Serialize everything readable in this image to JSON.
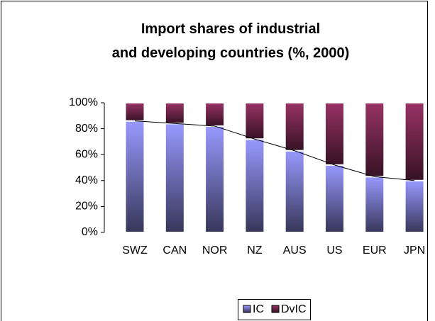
{
  "chart_data": {
    "type": "stacked_bar",
    "title": "Import shares of industrial and developing countries (%, 2000)",
    "categories": [
      "SWZ",
      "CAN",
      "NOR",
      "NZ",
      "AUS",
      "US",
      "EUR",
      "JPN"
    ],
    "series": [
      {
        "name": "IC",
        "color": "#9999ff",
        "values": [
          86,
          84,
          82,
          72,
          63,
          52,
          43,
          40
        ]
      },
      {
        "name": "DvIC",
        "color": "#993366",
        "values": [
          14,
          16,
          18,
          28,
          37,
          48,
          57,
          60
        ]
      }
    ],
    "ylim": [
      0,
      100
    ],
    "yticks": [
      {
        "value": 0,
        "label": "0%"
      },
      {
        "value": 20,
        "label": "20%"
      },
      {
        "value": 40,
        "label": "40%"
      },
      {
        "value": 60,
        "label": "60%"
      },
      {
        "value": 80,
        "label": "80%"
      },
      {
        "value": 100,
        "label": "100%"
      }
    ],
    "legend": "bottom"
  }
}
